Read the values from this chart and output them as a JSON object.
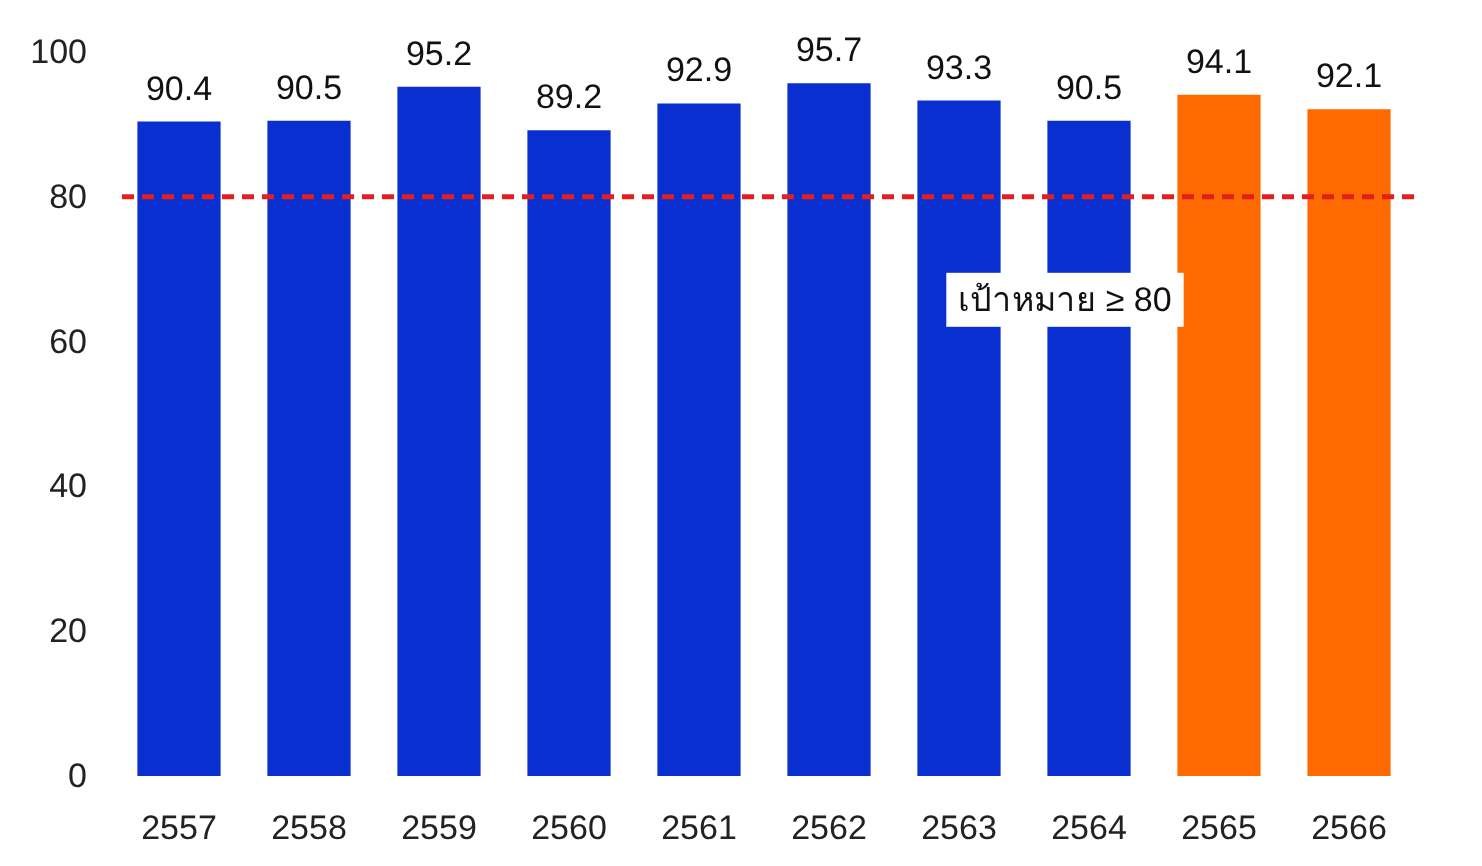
{
  "chart_data": {
    "type": "bar",
    "categories": [
      "2557",
      "2558",
      "2559",
      "2560",
      "2561",
      "2562",
      "2563",
      "2564",
      "2565",
      "2566"
    ],
    "values": [
      90.4,
      90.5,
      95.2,
      89.2,
      92.9,
      95.7,
      93.3,
      90.5,
      94.1,
      92.1
    ],
    "colors": [
      "#0a2fd0",
      "#0a2fd0",
      "#0a2fd0",
      "#0a2fd0",
      "#0a2fd0",
      "#0a2fd0",
      "#0a2fd0",
      "#0a2fd0",
      "#ff6a00",
      "#ff6a00"
    ],
    "ylim": [
      0,
      100
    ],
    "yticks": [
      0,
      20,
      40,
      60,
      80,
      100
    ],
    "data_labels": true,
    "grid": false,
    "ref_lines": [
      {
        "axis": "y",
        "value": 80,
        "label": "เป้าหมาย ≥ 80",
        "color": "#e02020",
        "line_style": "dashed"
      }
    ]
  }
}
